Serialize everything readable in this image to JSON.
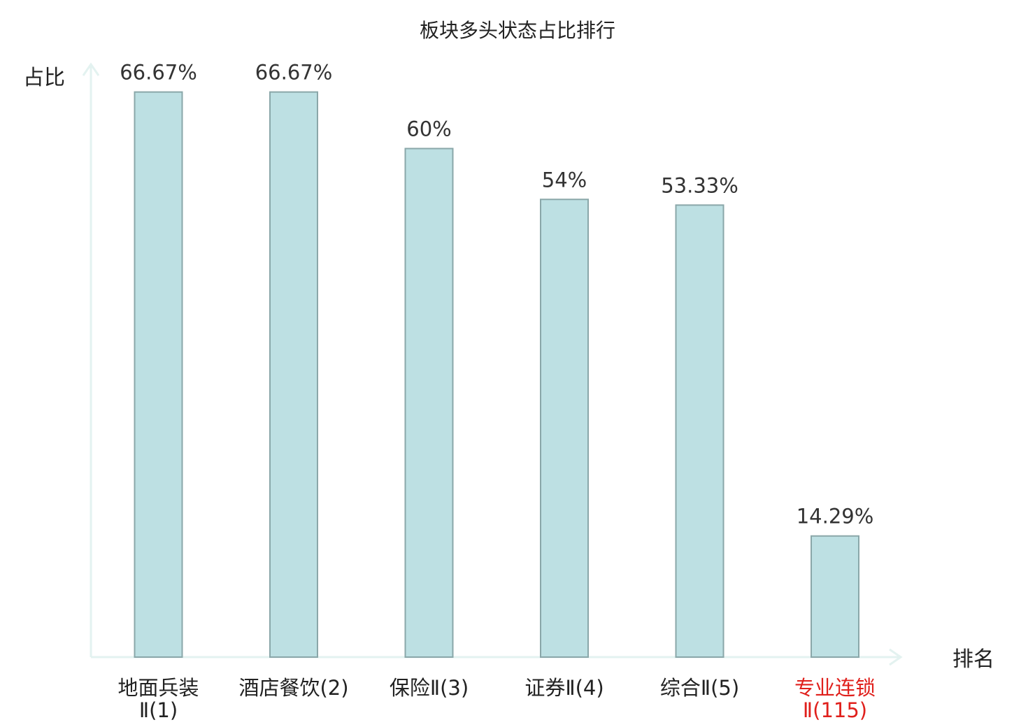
{
  "chart_data": {
    "type": "bar",
    "title": "板块多头状态占比排行",
    "ylabel": "占比",
    "xlabel": "排名",
    "ylim": [
      0,
      70
    ],
    "grid": false,
    "legend": "none",
    "categories": [
      [
        "地面兵装",
        "Ⅱ(1)"
      ],
      [
        "酒店餐饮(2)"
      ],
      [
        "保险Ⅱ(3)"
      ],
      [
        "证券Ⅱ(4)"
      ],
      [
        "综合Ⅱ(5)"
      ],
      [
        "专业连锁",
        "Ⅱ(115)"
      ]
    ],
    "values": [
      66.67,
      66.67,
      60,
      54,
      53.33,
      14.29
    ],
    "value_labels": [
      "66.67%",
      "66.67%",
      "60%",
      "54%",
      "53.33%",
      "14.29%"
    ],
    "highlight_index": 5,
    "colors": {
      "bar_fill": "#bde0e3",
      "bar_stroke": "#8aa7a9",
      "axis": "#e3f2f0",
      "label": "#222222",
      "value": "#333333",
      "highlight": "#e0201c"
    }
  }
}
